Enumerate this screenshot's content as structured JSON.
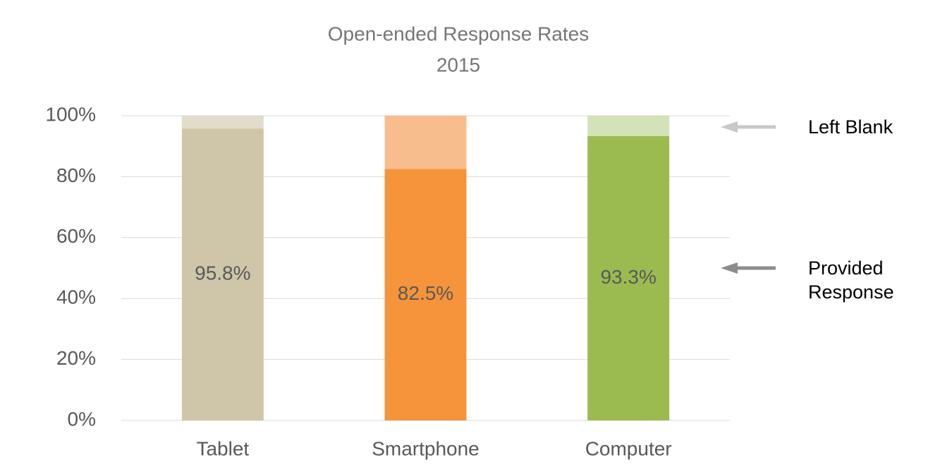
{
  "chart_data": {
    "type": "stacked_bar",
    "title": "Open-ended Response Rates",
    "subtitle": "2015",
    "categories": [
      "Tablet",
      "Smartphone",
      "Computer"
    ],
    "series": [
      {
        "name": "Provided Response",
        "values": [
          95.8,
          82.5,
          93.3
        ],
        "colors": [
          "#cfc5a8",
          "#f5943a",
          "#9bbb51"
        ],
        "value_labels": [
          "95.8%",
          "82.5%",
          "93.3%"
        ]
      },
      {
        "name": "Left Blank",
        "values": [
          4.2,
          17.5,
          6.7
        ],
        "colors": [
          "#e2dcca",
          "#f8bd8c",
          "#d3e2b7"
        ]
      }
    ],
    "ylim": [
      0,
      100
    ],
    "yticks": [
      {
        "value": 0,
        "label": "0%"
      },
      {
        "value": 20,
        "label": "20%"
      },
      {
        "value": 40,
        "label": "40%"
      },
      {
        "value": 60,
        "label": "60%"
      },
      {
        "value": 80,
        "label": "80%"
      },
      {
        "value": 100,
        "label": "100%"
      }
    ],
    "grid": true
  }
}
